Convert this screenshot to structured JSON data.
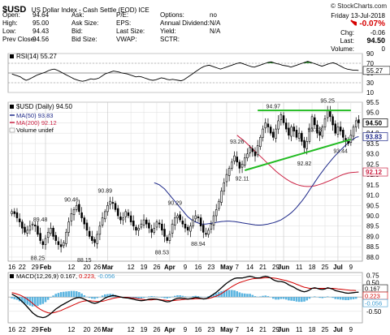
{
  "header": {
    "symbol": "$USD",
    "name": "US Dollar Index - Cash Settle (EOD) ICE",
    "source": "© StockCharts.com",
    "quote": [
      [
        {
          "label": "Open:",
          "value": "94.64"
        },
        {
          "label": "Ask:",
          "value": ""
        },
        {
          "label": "P/E:",
          "value": ""
        },
        {
          "label": "Options:",
          "value": "no"
        }
      ],
      [
        {
          "label": "High:",
          "value": "95.00"
        },
        {
          "label": "Ask Size:",
          "value": ""
        },
        {
          "label": "EPS:",
          "value": ""
        },
        {
          "label": "Annual Dividend:",
          "value": "N/A"
        }
      ],
      [
        {
          "label": "Low:",
          "value": "94.43"
        },
        {
          "label": "Bid:",
          "value": ""
        },
        {
          "label": "Last Size:",
          "value": ""
        },
        {
          "label": "Yield:",
          "value": "N/A"
        }
      ],
      [
        {
          "label": "Prev Close:",
          "value": "94.56"
        },
        {
          "label": "Bid Size:",
          "value": ""
        },
        {
          "label": "VWAP:",
          "value": ""
        },
        {
          "label": "SCTR:",
          "value": ""
        }
      ]
    ],
    "date": "Friday  13-Jul-2018",
    "pct_change": "-0.07%",
    "chg_label": "Chg:",
    "chg_value": "-0.06",
    "last_label": "Last:",
    "last_value": "94.50",
    "volume_label": "Volume:",
    "volume_value": "0"
  },
  "chart_data": [
    {
      "type": "line",
      "name": "RSI(14)",
      "legend": "RSI(14) 55.27",
      "last": 55.27,
      "ylim": [
        10,
        90
      ],
      "yticks": [
        90,
        70,
        50,
        30,
        10
      ],
      "levels": [
        70,
        30
      ],
      "values": [
        48,
        46,
        44,
        42,
        38,
        35,
        37,
        40,
        43,
        46,
        48,
        50,
        52,
        55,
        57,
        58,
        56,
        53,
        50,
        47,
        44,
        41,
        38,
        36,
        34,
        33,
        34,
        36,
        38,
        37,
        38,
        40,
        44,
        48,
        50,
        52,
        54,
        53,
        52,
        50,
        49,
        48,
        46,
        44,
        42,
        43,
        42,
        40,
        38,
        36,
        35,
        36,
        38,
        40,
        39,
        37,
        36,
        37,
        36,
        35,
        34,
        36,
        40,
        44,
        48,
        52,
        56,
        60,
        63,
        65,
        66,
        64,
        62,
        60,
        58,
        60,
        62,
        64,
        66,
        68,
        70,
        71,
        69,
        67,
        65,
        63,
        62,
        64,
        66,
        68,
        70,
        72,
        73,
        71,
        69,
        68,
        66,
        65,
        64,
        62,
        64,
        66,
        68,
        70,
        72,
        74,
        72,
        70,
        68,
        66,
        64,
        66,
        68,
        70,
        71,
        69,
        66,
        63,
        60,
        58,
        57,
        56,
        56,
        55.27
      ]
    },
    {
      "type": "candlestick",
      "legend_title": "$USD (Daily) 94.50",
      "legend_ma50": "MA(50) 93.83",
      "legend_ma200": "MA(200) 92.12",
      "legend_volume": "Volume undef",
      "ylim": [
        87.8,
        95.5
      ],
      "yticks": [
        95.5,
        95.0,
        94.5,
        94.0,
        93.5,
        93.0,
        92.5,
        92.0,
        91.5,
        91.0,
        90.5,
        90.0,
        89.5,
        89.0,
        88.5,
        88.0
      ],
      "last_price": "94.50",
      "ma50_tag": "93.83",
      "ma200_tag": "92.12",
      "closes": [
        90.2,
        90.1,
        89.9,
        89.7,
        89.4,
        89.2,
        89.3,
        89.5,
        89.6,
        89.5,
        89.1,
        88.8,
        88.6,
        88.9,
        89.2,
        89.4,
        89.0,
        88.8,
        88.6,
        88.5,
        88.7,
        89.2,
        89.7,
        90.1,
        90.3,
        90.5,
        90.2,
        89.9,
        89.6,
        89.3,
        89.0,
        88.8,
        88.7,
        89.1,
        89.5,
        89.9,
        90.2,
        90.5,
        90.7,
        90.6,
        90.3,
        90.0,
        89.8,
        89.9,
        90.2,
        90.0,
        89.7,
        89.5,
        89.3,
        89.4,
        89.6,
        89.8,
        89.6,
        89.4,
        89.2,
        89.4,
        89.7,
        89.6,
        89.3,
        89.0,
        88.8,
        89.1,
        89.6,
        89.9,
        90.0,
        89.8,
        89.6,
        89.4,
        89.3,
        89.5,
        89.8,
        90.0,
        89.9,
        89.5,
        89.2,
        89.1,
        89.3,
        89.6,
        90.0,
        90.3,
        90.7,
        91.2,
        91.6,
        92.0,
        92.3,
        92.6,
        92.9,
        92.6,
        92.3,
        92.5,
        92.8,
        93.0,
        93.3,
        93.1,
        92.9,
        93.4,
        93.8,
        94.2,
        94.5,
        94.3,
        94.0,
        93.8,
        94.2,
        94.6,
        94.9,
        94.5,
        94.2,
        93.9,
        94.3,
        94.1,
        93.8,
        94.0,
        93.6,
        93.3,
        93.6,
        94.2,
        94.8,
        94.4,
        94.0,
        93.9,
        94.3,
        94.7,
        95.1,
        94.8,
        94.4,
        94.0,
        94.3,
        94.1,
        93.8,
        93.6,
        93.5,
        93.9,
        94.3,
        94.6,
        94.5
      ],
      "ma50": [
        91.6,
        91.55,
        91.5,
        91.4,
        91.3,
        91.15,
        91.0,
        90.85,
        90.7,
        90.55,
        90.4,
        90.25,
        90.1,
        89.95,
        89.85,
        89.75,
        89.7,
        89.65,
        89.6,
        89.6,
        89.6,
        89.62,
        89.64,
        89.66,
        89.68,
        89.7,
        89.72,
        89.73,
        89.74,
        89.74,
        89.73,
        89.72,
        89.7,
        89.68,
        89.66,
        89.64,
        89.62,
        89.6,
        89.58,
        89.56,
        89.55,
        89.55,
        89.56,
        89.58,
        89.6,
        89.63,
        89.66,
        89.7,
        89.75,
        89.8,
        89.88,
        89.96,
        90.05,
        90.15,
        90.27,
        90.4,
        90.55,
        90.7,
        90.87,
        91.05,
        91.24,
        91.43,
        91.62,
        91.8,
        91.98,
        92.15,
        92.32,
        92.48,
        92.63,
        92.78,
        92.92,
        93.05,
        93.18,
        93.3,
        93.42,
        93.53,
        93.63,
        93.72,
        93.8,
        93.83
      ],
      "ma200": [
        93.9,
        93.8,
        93.7,
        93.6,
        93.48,
        93.36,
        93.24,
        93.12,
        93.0,
        92.88,
        92.76,
        92.64,
        92.52,
        92.4,
        92.28,
        92.16,
        92.06,
        91.96,
        91.87,
        91.78,
        91.7,
        91.63,
        91.57,
        91.52,
        91.48,
        91.45,
        91.43,
        91.42,
        91.42,
        91.43,
        91.45,
        91.48,
        91.52,
        91.56,
        91.61,
        91.66,
        91.71,
        91.77,
        91.83,
        91.89,
        91.95,
        92.0,
        92.04,
        92.07,
        92.09,
        92.1,
        92.11,
        92.12
      ],
      "trendline_top": {
        "x": [
          95,
          131
        ],
        "y": [
          95.1,
          95.1
        ]
      },
      "trendline_bottom": {
        "x": [
          90,
          131
        ],
        "y": [
          92.2,
          93.7
        ]
      },
      "annotations": [
        {
          "text": "88.25",
          "i": 10,
          "y": 88.25
        },
        {
          "text": "89.48",
          "i": 11,
          "y": 89.48
        },
        {
          "text": "90.46",
          "i": 23,
          "y": 90.46
        },
        {
          "text": "88.15",
          "i": 28,
          "y": 88.15
        },
        {
          "text": "90.89",
          "i": 36,
          "y": 90.89
        },
        {
          "text": "88.53",
          "i": 58,
          "y": 88.53
        },
        {
          "text": "90.29",
          "i": 63,
          "y": 90.29
        },
        {
          "text": "88.94",
          "i": 72,
          "y": 88.94
        },
        {
          "text": "93.26",
          "i": 87,
          "y": 93.26
        },
        {
          "text": "92.11",
          "i": 89,
          "y": 92.11
        },
        {
          "text": "94.97",
          "i": 101,
          "y": 94.97
        },
        {
          "text": "92.82",
          "i": 113,
          "y": 92.82
        },
        {
          "text": "93.83",
          "i": 117,
          "y": 93.83
        },
        {
          "text": "95.25",
          "i": 122,
          "y": 95.25
        },
        {
          "text": "93.44",
          "i": 127,
          "y": 93.44
        }
      ],
      "xticks": [
        {
          "label": "16",
          "i": 0
        },
        {
          "label": "22",
          "i": 4
        },
        {
          "label": "29",
          "i": 9
        },
        {
          "label": "Feb",
          "i": 13,
          "bold": true
        },
        {
          "label": "12",
          "i": 23
        },
        {
          "label": "20",
          "i": 29
        },
        {
          "label": "26",
          "i": 33
        },
        {
          "label": "Mar",
          "i": 37,
          "bold": true
        },
        {
          "label": "12",
          "i": 46
        },
        {
          "label": "19",
          "i": 51
        },
        {
          "label": "26",
          "i": 56
        },
        {
          "label": "Apr",
          "i": 61,
          "bold": true
        },
        {
          "label": "9",
          "i": 67
        },
        {
          "label": "16",
          "i": 72
        },
        {
          "label": "23",
          "i": 77
        },
        {
          "label": "May",
          "i": 83,
          "bold": true
        },
        {
          "label": "7",
          "i": 87
        },
        {
          "label": "14",
          "i": 92
        },
        {
          "label": "21",
          "i": 97
        },
        {
          "label": "29",
          "i": 102
        },
        {
          "label": "Jun",
          "i": 105,
          "bold": true
        },
        {
          "label": "11",
          "i": 111
        },
        {
          "label": "18",
          "i": 116
        },
        {
          "label": "25",
          "i": 121
        },
        {
          "label": "Jul",
          "i": 126,
          "bold": true
        },
        {
          "label": "9",
          "i": 131
        }
      ]
    },
    {
      "type": "line",
      "name": "MACD(12,26,9)",
      "legend_title": "MACD(12,26,9)",
      "legend_macd": "0.167,",
      "legend_signal": "0.223,",
      "legend_hist": "-0.056",
      "ylim": [
        -0.9,
        0.85
      ],
      "yticks": [
        0.75,
        0.5,
        0.25,
        0.0,
        -0.25,
        -0.5
      ],
      "tags": [
        "0.167",
        "0.223",
        "-0.056"
      ],
      "macd": [
        0.1,
        0.05,
        0.0,
        -0.08,
        -0.16,
        -0.25,
        -0.35,
        -0.45,
        -0.55,
        -0.62,
        -0.68,
        -0.7,
        -0.72,
        -0.7,
        -0.65,
        -0.58,
        -0.5,
        -0.42,
        -0.36,
        -0.3,
        -0.25,
        -0.2,
        -0.15,
        -0.1,
        -0.06,
        -0.03,
        -0.02,
        -0.04,
        -0.08,
        -0.12,
        -0.16,
        -0.2,
        -0.22,
        -0.2,
        -0.16,
        -0.1,
        -0.04,
        0.0,
        0.03,
        0.05,
        0.04,
        0.02,
        0.0,
        -0.02,
        -0.03,
        -0.04,
        -0.06,
        -0.08,
        -0.1,
        -0.12,
        -0.13,
        -0.12,
        -0.1,
        -0.08,
        -0.07,
        -0.07,
        -0.08,
        -0.1,
        -0.12,
        -0.15,
        -0.17,
        -0.16,
        -0.12,
        -0.08,
        -0.05,
        -0.04,
        -0.05,
        -0.06,
        -0.07,
        -0.06,
        -0.04,
        -0.02,
        -0.03,
        -0.05,
        -0.07,
        -0.06,
        -0.02,
        0.04,
        0.1,
        0.16,
        0.24,
        0.32,
        0.4,
        0.48,
        0.54,
        0.6,
        0.64,
        0.66,
        0.66,
        0.66,
        0.68,
        0.7,
        0.72,
        0.7,
        0.67,
        0.66,
        0.67,
        0.7,
        0.72,
        0.7,
        0.66,
        0.6,
        0.56,
        0.54,
        0.54,
        0.52,
        0.48,
        0.42,
        0.38,
        0.34,
        0.28,
        0.24,
        0.2,
        0.18,
        0.2,
        0.24,
        0.3,
        0.32,
        0.3,
        0.27,
        0.26,
        0.28,
        0.32,
        0.3,
        0.27,
        0.22,
        0.2,
        0.18,
        0.16,
        0.14,
        0.13,
        0.14,
        0.15,
        0.16,
        0.167
      ],
      "signal": [
        0.15,
        0.13,
        0.1,
        0.07,
        0.03,
        -0.02,
        -0.08,
        -0.15,
        -0.22,
        -0.3,
        -0.37,
        -0.43,
        -0.48,
        -0.52,
        -0.55,
        -0.56,
        -0.55,
        -0.53,
        -0.5,
        -0.47,
        -0.43,
        -0.39,
        -0.35,
        -0.31,
        -0.27,
        -0.23,
        -0.19,
        -0.16,
        -0.14,
        -0.13,
        -0.13,
        -0.14,
        -0.15,
        -0.16,
        -0.16,
        -0.15,
        -0.13,
        -0.1,
        -0.08,
        -0.05,
        -0.03,
        -0.02,
        -0.01,
        -0.01,
        -0.01,
        -0.02,
        -0.03,
        -0.04,
        -0.05,
        -0.07,
        -0.08,
        -0.09,
        -0.1,
        -0.1,
        -0.1,
        -0.09,
        -0.09,
        -0.09,
        -0.1,
        -0.11,
        -0.12,
        -0.13,
        -0.13,
        -0.12,
        -0.11,
        -0.1,
        -0.09,
        -0.08,
        -0.08,
        -0.07,
        -0.07,
        -0.06,
        -0.06,
        -0.06,
        -0.06,
        -0.06,
        -0.05,
        -0.03,
        0.0,
        0.03,
        0.07,
        0.12,
        0.18,
        0.24,
        0.3,
        0.36,
        0.41,
        0.46,
        0.5,
        0.53,
        0.56,
        0.59,
        0.61,
        0.63,
        0.64,
        0.65,
        0.65,
        0.66,
        0.67,
        0.67,
        0.67,
        0.66,
        0.65,
        0.63,
        0.61,
        0.59,
        0.57,
        0.54,
        0.51,
        0.48,
        0.44,
        0.41,
        0.37,
        0.34,
        0.32,
        0.3,
        0.3,
        0.3,
        0.3,
        0.3,
        0.3,
        0.3,
        0.3,
        0.3,
        0.3,
        0.29,
        0.28,
        0.27,
        0.26,
        0.25,
        0.24,
        0.23,
        0.23,
        0.223
      ],
      "xticks": [
        {
          "label": "16",
          "i": 0
        },
        {
          "label": "22",
          "i": 4
        },
        {
          "label": "29",
          "i": 9
        },
        {
          "label": "Feb",
          "i": 13,
          "bold": true
        },
        {
          "label": "12",
          "i": 23
        },
        {
          "label": "20",
          "i": 29
        },
        {
          "label": "26",
          "i": 33
        },
        {
          "label": "Mar",
          "i": 37,
          "bold": true
        },
        {
          "label": "12",
          "i": 46
        },
        {
          "label": "19",
          "i": 51
        },
        {
          "label": "26",
          "i": 56
        },
        {
          "label": "Apr",
          "i": 61,
          "bold": true
        },
        {
          "label": "9",
          "i": 67
        },
        {
          "label": "16",
          "i": 72
        },
        {
          "label": "23",
          "i": 77
        },
        {
          "label": "May",
          "i": 83,
          "bold": true
        },
        {
          "label": "7",
          "i": 87
        },
        {
          "label": "14",
          "i": 92
        },
        {
          "label": "21",
          "i": 97
        },
        {
          "label": "29",
          "i": 102
        },
        {
          "label": "Jun",
          "i": 105,
          "bold": true
        },
        {
          "label": "11",
          "i": 111
        },
        {
          "label": "18",
          "i": 116
        },
        {
          "label": "25",
          "i": 121
        },
        {
          "label": "Jul",
          "i": 126,
          "bold": true
        },
        {
          "label": "9",
          "i": 131
        }
      ]
    }
  ],
  "colors": {
    "up": "#ffffff",
    "down": "#000000",
    "ma50": "#1f2a8a",
    "ma200": "#cc2244",
    "trend": "#22bb22",
    "rsi": "#000000",
    "rsi_over": "#2e8b2e",
    "macd": "#000000",
    "signal": "#d40000",
    "hist": "#5ab4e0",
    "grid": "#e2e2e2",
    "panel_border": "#999999"
  }
}
